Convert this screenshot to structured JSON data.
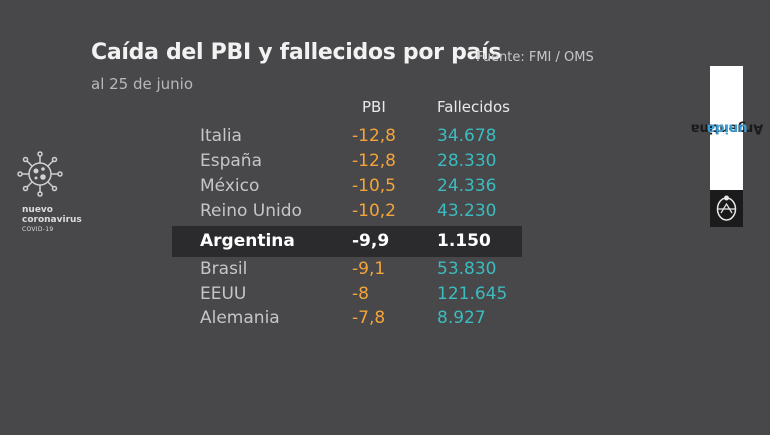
{
  "header": {
    "title": "Caída del PBI y fallecidos por país",
    "source": "Fuente: FMI / OMS",
    "subtitle": "al 25 de junio"
  },
  "table": {
    "columns": [
      "PBI",
      "Fallecidos"
    ],
    "rows": [
      {
        "country": "Italia",
        "pbi": "-12,8",
        "deaths": "34.678"
      },
      {
        "country": "España",
        "pbi": "-12,8",
        "deaths": "28.330"
      },
      {
        "country": "México",
        "pbi": "-10,5",
        "deaths": "24.336"
      },
      {
        "country": "Reino Unido",
        "pbi": "-10,2",
        "deaths": "43.230"
      },
      {
        "country": "Argentina",
        "pbi": "-9,9",
        "deaths": "1.150"
      },
      {
        "country": "Brasil",
        "pbi": "-9,1",
        "deaths": "53.830"
      },
      {
        "country": "EEUU",
        "pbi": "-8",
        "deaths": "121.645"
      },
      {
        "country": "Alemania",
        "pbi": "-7,8",
        "deaths": "8.927"
      }
    ],
    "highlighted_row": "Argentina"
  },
  "virus_badge": {
    "icon": "virus-icon",
    "line1": "nuevo",
    "line2": "coronavirus",
    "line3": "COVID-19"
  },
  "brand": {
    "word1": "Argentina",
    "word2": "unida",
    "seal_icon": "national-seal-icon"
  },
  "colors": {
    "background": "#48484a",
    "pbi": "#f4a43a",
    "deaths": "#3bbcc0",
    "highlight": "#2b2b2d",
    "brand_accent": "#3a9fd8"
  }
}
